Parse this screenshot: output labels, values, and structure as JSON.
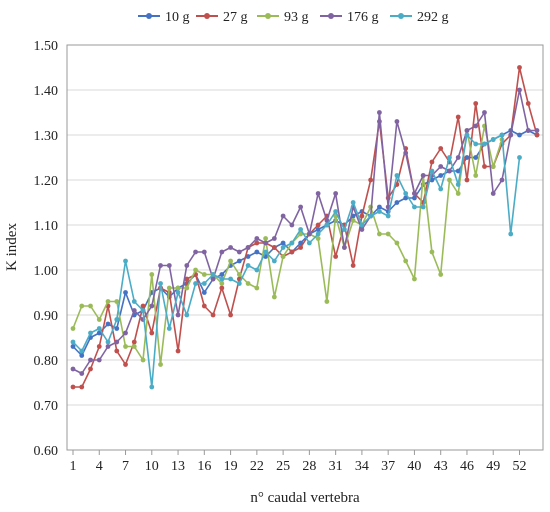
{
  "chart_data": {
    "type": "line",
    "title": "",
    "xlabel": "n° caudal vertebra",
    "ylabel": "K index",
    "ylim": [
      0.6,
      1.5
    ],
    "yticks": [
      "0.60",
      "0.70",
      "0.80",
      "0.90",
      "1.00",
      "1.10",
      "1.20",
      "1.30",
      "1.40",
      "1.50"
    ],
    "xlim": [
      1,
      54
    ],
    "xticks": [
      1,
      4,
      7,
      10,
      13,
      16,
      19,
      22,
      25,
      28,
      31,
      34,
      37,
      40,
      43,
      46,
      49,
      52
    ],
    "grid": {
      "horizontal": true,
      "vertical": false
    },
    "legend_position": "top",
    "series": [
      {
        "name": "10 g",
        "color": "#4472c4",
        "x": [
          1,
          2,
          3,
          4,
          5,
          6,
          7,
          8,
          9,
          10,
          11,
          12,
          13,
          14,
          15,
          16,
          17,
          18,
          19,
          20,
          21,
          22,
          23,
          24,
          25,
          26,
          27,
          28,
          29,
          30,
          31,
          32,
          33,
          34,
          35,
          36,
          37,
          38,
          39,
          40,
          41,
          42,
          43,
          44,
          45,
          46,
          47,
          48,
          49,
          50,
          51,
          52,
          53,
          54
        ],
        "values": [
          0.83,
          0.81,
          0.85,
          0.86,
          0.88,
          0.87,
          0.95,
          0.9,
          0.91,
          0.95,
          0.96,
          0.94,
          0.96,
          0.97,
          0.99,
          0.95,
          0.98,
          0.99,
          1.01,
          1.02,
          1.03,
          1.04,
          1.03,
          1.05,
          1.06,
          1.04,
          1.06,
          1.08,
          1.09,
          1.1,
          1.11,
          1.1,
          1.12,
          1.13,
          1.12,
          1.14,
          1.13,
          1.15,
          1.16,
          1.16,
          1.19,
          1.2,
          1.21,
          1.22,
          1.22,
          1.25,
          1.25,
          1.28,
          1.29,
          1.3,
          1.31,
          1.3,
          1.31,
          1.3
        ]
      },
      {
        "name": "27 g",
        "color": "#c0504d",
        "x": [
          1,
          2,
          3,
          4,
          5,
          6,
          7,
          8,
          9,
          10,
          11,
          12,
          13,
          14,
          15,
          16,
          17,
          18,
          19,
          20,
          21,
          22,
          23,
          24,
          25,
          26,
          27,
          28,
          29,
          30,
          31,
          32,
          33,
          34,
          35,
          36,
          37,
          38,
          39,
          40,
          41,
          42,
          43,
          44,
          45,
          46,
          47,
          48,
          49,
          50,
          51,
          52,
          53,
          54
        ],
        "values": [
          0.74,
          0.74,
          0.78,
          0.83,
          0.92,
          0.82,
          0.79,
          0.84,
          0.92,
          0.86,
          0.96,
          0.95,
          0.82,
          0.98,
          0.99,
          0.92,
          0.9,
          0.96,
          0.9,
          0.98,
          1.05,
          1.06,
          1.06,
          1.05,
          1.03,
          1.04,
          1.05,
          1.08,
          1.1,
          1.12,
          1.03,
          1.1,
          1.01,
          1.12,
          1.2,
          1.33,
          1.16,
          1.19,
          1.27,
          1.17,
          1.15,
          1.24,
          1.27,
          1.24,
          1.34,
          1.2,
          1.37,
          1.23,
          1.23,
          1.28,
          1.3,
          1.45,
          1.37,
          1.3
        ]
      },
      {
        "name": "93 g",
        "color": "#9bbb59",
        "x": [
          1,
          2,
          3,
          4,
          5,
          6,
          7,
          8,
          9,
          10,
          11,
          12,
          13,
          14,
          15,
          16,
          17,
          18,
          19,
          20,
          21,
          22,
          23,
          24,
          25,
          26,
          27,
          28,
          29,
          30,
          31,
          32,
          33,
          34,
          35,
          36,
          37,
          38,
          39,
          40,
          41,
          42,
          43,
          44,
          45,
          46,
          47,
          48,
          49,
          50
        ],
        "values": [
          0.87,
          0.92,
          0.92,
          0.89,
          0.93,
          0.93,
          0.83,
          0.83,
          0.8,
          0.99,
          0.79,
          0.96,
          0.96,
          0.96,
          1.0,
          0.99,
          0.99,
          0.97,
          1.02,
          0.99,
          0.97,
          0.96,
          1.07,
          0.94,
          1.03,
          1.06,
          1.08,
          1.08,
          1.07,
          0.93,
          1.12,
          1.05,
          1.11,
          1.1,
          1.14,
          1.08,
          1.08,
          1.06,
          1.02,
          0.98,
          1.21,
          1.04,
          0.99,
          1.2,
          1.17,
          1.31,
          1.21,
          1.32,
          1.23,
          1.29
        ]
      },
      {
        "name": "176 g",
        "color": "#8064a2",
        "x": [
          1,
          2,
          3,
          4,
          5,
          6,
          7,
          8,
          9,
          10,
          11,
          12,
          13,
          14,
          15,
          16,
          17,
          18,
          19,
          20,
          21,
          22,
          23,
          24,
          25,
          26,
          27,
          28,
          29,
          30,
          31,
          32,
          33,
          34,
          35,
          36,
          37,
          38,
          39,
          40,
          41,
          42,
          43,
          44,
          45,
          46,
          47,
          48,
          49,
          50,
          51,
          52,
          53,
          54
        ],
        "values": [
          0.78,
          0.77,
          0.8,
          0.8,
          0.83,
          0.84,
          0.86,
          0.91,
          0.89,
          0.92,
          1.01,
          1.01,
          0.9,
          1.01,
          1.04,
          1.04,
          0.98,
          1.04,
          1.05,
          1.04,
          1.05,
          1.07,
          1.06,
          1.07,
          1.12,
          1.1,
          1.14,
          1.08,
          1.17,
          1.11,
          1.17,
          1.05,
          1.14,
          1.09,
          1.12,
          1.35,
          1.14,
          1.33,
          1.26,
          1.17,
          1.21,
          1.21,
          1.23,
          1.22,
          1.25,
          1.31,
          1.32,
          1.35,
          1.17,
          1.2,
          1.3,
          1.4,
          1.31,
          1.31
        ]
      },
      {
        "name": "292 g",
        "color": "#4bacc6",
        "x": [
          1,
          2,
          3,
          4,
          5,
          6,
          7,
          8,
          9,
          10,
          11,
          12,
          13,
          14,
          15,
          16,
          17,
          18,
          19,
          20,
          21,
          22,
          23,
          24,
          25,
          26,
          27,
          28,
          29,
          30,
          31,
          32,
          33,
          34,
          35,
          36,
          37,
          38,
          39,
          40,
          41,
          42,
          43,
          44,
          45,
          46,
          47,
          48,
          49,
          50,
          51,
          52
        ],
        "values": [
          0.84,
          0.82,
          0.86,
          0.87,
          0.84,
          0.89,
          1.02,
          0.93,
          0.91,
          0.74,
          0.97,
          0.87,
          0.95,
          0.9,
          0.97,
          0.97,
          0.99,
          0.98,
          0.98,
          0.97,
          1.01,
          1.0,
          1.04,
          1.02,
          1.05,
          1.06,
          1.09,
          1.06,
          1.08,
          1.1,
          1.13,
          1.09,
          1.15,
          1.1,
          1.12,
          1.13,
          1.12,
          1.21,
          1.17,
          1.14,
          1.14,
          1.22,
          1.18,
          1.25,
          1.19,
          1.3,
          1.28,
          1.28,
          1.29,
          1.3,
          1.08,
          1.25
        ]
      }
    ]
  }
}
